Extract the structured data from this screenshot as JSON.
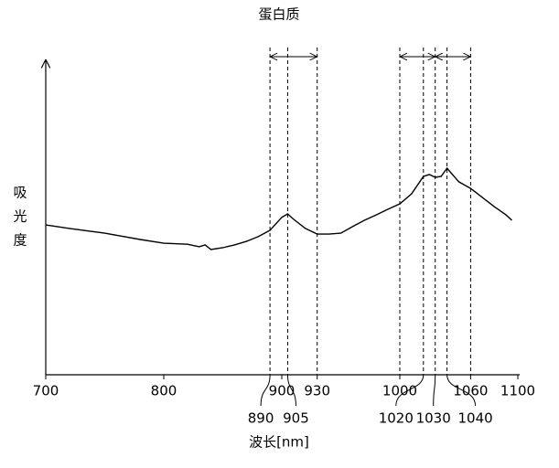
{
  "chart_data": {
    "type": "line",
    "title": "蛋白质",
    "x_label": "波长[nm]",
    "y_label": [
      "吸",
      "光",
      "度"
    ],
    "xlim": [
      700,
      1100
    ],
    "ylim": [
      0,
      100
    ],
    "xticks": [
      700,
      800,
      900,
      930,
      1000,
      1060,
      1100
    ],
    "xticks_lower": [
      890,
      905,
      1020,
      1030,
      1040
    ],
    "reference_lines": [
      890,
      905,
      930,
      1000,
      1020,
      1030,
      1040,
      1060
    ],
    "ranges": [
      [
        890,
        930
      ],
      [
        1000,
        1030
      ],
      [
        1030,
        1060
      ]
    ],
    "color": "#000000",
    "x": [
      700,
      720,
      750,
      780,
      800,
      820,
      830,
      835,
      840,
      850,
      860,
      870,
      880,
      890,
      900,
      905,
      910,
      920,
      930,
      940,
      950,
      960,
      970,
      980,
      990,
      1000,
      1010,
      1020,
      1025,
      1030,
      1035,
      1040,
      1050,
      1060,
      1070,
      1080,
      1090,
      1095
    ],
    "values": [
      47.5,
      46.4,
      44.9,
      42.9,
      41.7,
      41.4,
      40.6,
      41.2,
      39.7,
      40.3,
      41.2,
      42.3,
      43.8,
      45.8,
      49.9,
      51.0,
      49.3,
      46.4,
      44.6,
      44.6,
      44.9,
      47.0,
      49.0,
      50.7,
      52.5,
      54.2,
      57.4,
      62.9,
      63.5,
      62.6,
      62.9,
      65.5,
      61.2,
      59.1,
      56.2,
      53.3,
      50.7,
      49.0
    ]
  }
}
